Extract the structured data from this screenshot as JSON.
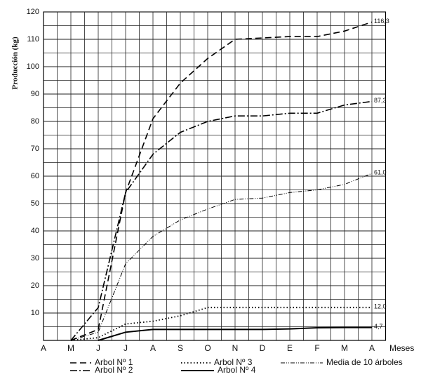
{
  "chart_data": {
    "type": "line",
    "y_label": "Producción (kg)",
    "x_label": "Meses",
    "categories": [
      "A",
      "M",
      "J",
      "J",
      "A",
      "S",
      "O",
      "N",
      "D",
      "E",
      "F",
      "M",
      "A"
    ],
    "ylim": [
      0,
      120
    ],
    "yticks": [
      10,
      20,
      30,
      40,
      50,
      60,
      70,
      80,
      90,
      100,
      110,
      120
    ],
    "grid": true,
    "series": [
      {
        "name": "Arbol Nº 1",
        "color": "#000000",
        "dash": "dashed",
        "values": [
          null,
          0,
          4,
          54,
          81,
          94,
          103,
          110,
          110.5,
          111,
          111,
          113,
          116.3
        ],
        "value_labels": [
          null,
          null,
          null,
          null,
          null,
          null,
          null,
          null,
          null,
          null,
          null,
          null,
          "116,3"
        ]
      },
      {
        "name": "Arbol Nº 2",
        "color": "#000000",
        "dash": "dashdot",
        "values": [
          null,
          0,
          12,
          54,
          68,
          76,
          80,
          82,
          82,
          83,
          83,
          86,
          87.3
        ],
        "value_labels": [
          null,
          null,
          null,
          null,
          null,
          null,
          null,
          null,
          null,
          null,
          null,
          null,
          "87,3"
        ]
      },
      {
        "name": "Arbol Nº 3",
        "color": "#000000",
        "dash": "dotted",
        "values": [
          null,
          0,
          1,
          6,
          7,
          9,
          12,
          12,
          12,
          12,
          12,
          12,
          12.0
        ],
        "value_labels": [
          null,
          null,
          null,
          null,
          null,
          null,
          null,
          null,
          null,
          null,
          null,
          null,
          "12,0"
        ]
      },
      {
        "name": "Arbol Nº 4",
        "color": "#000000",
        "dash": "solid",
        "values": [
          null,
          null,
          0,
          3,
          4,
          4,
          4,
          4,
          4,
          4.2,
          4.6,
          4.7,
          4.7
        ],
        "value_labels": [
          null,
          null,
          null,
          null,
          null,
          null,
          null,
          null,
          null,
          null,
          null,
          null,
          "4,7"
        ]
      },
      {
        "name": "Media de  10 árboles",
        "color": "#000000",
        "dash": "dashdotdot",
        "values": [
          null,
          0,
          3,
          28,
          38,
          44,
          48,
          51.5,
          52,
          54,
          55,
          57,
          61.0
        ],
        "value_labels": [
          null,
          null,
          null,
          null,
          null,
          null,
          null,
          null,
          null,
          null,
          null,
          null,
          "61,0"
        ]
      }
    ]
  }
}
